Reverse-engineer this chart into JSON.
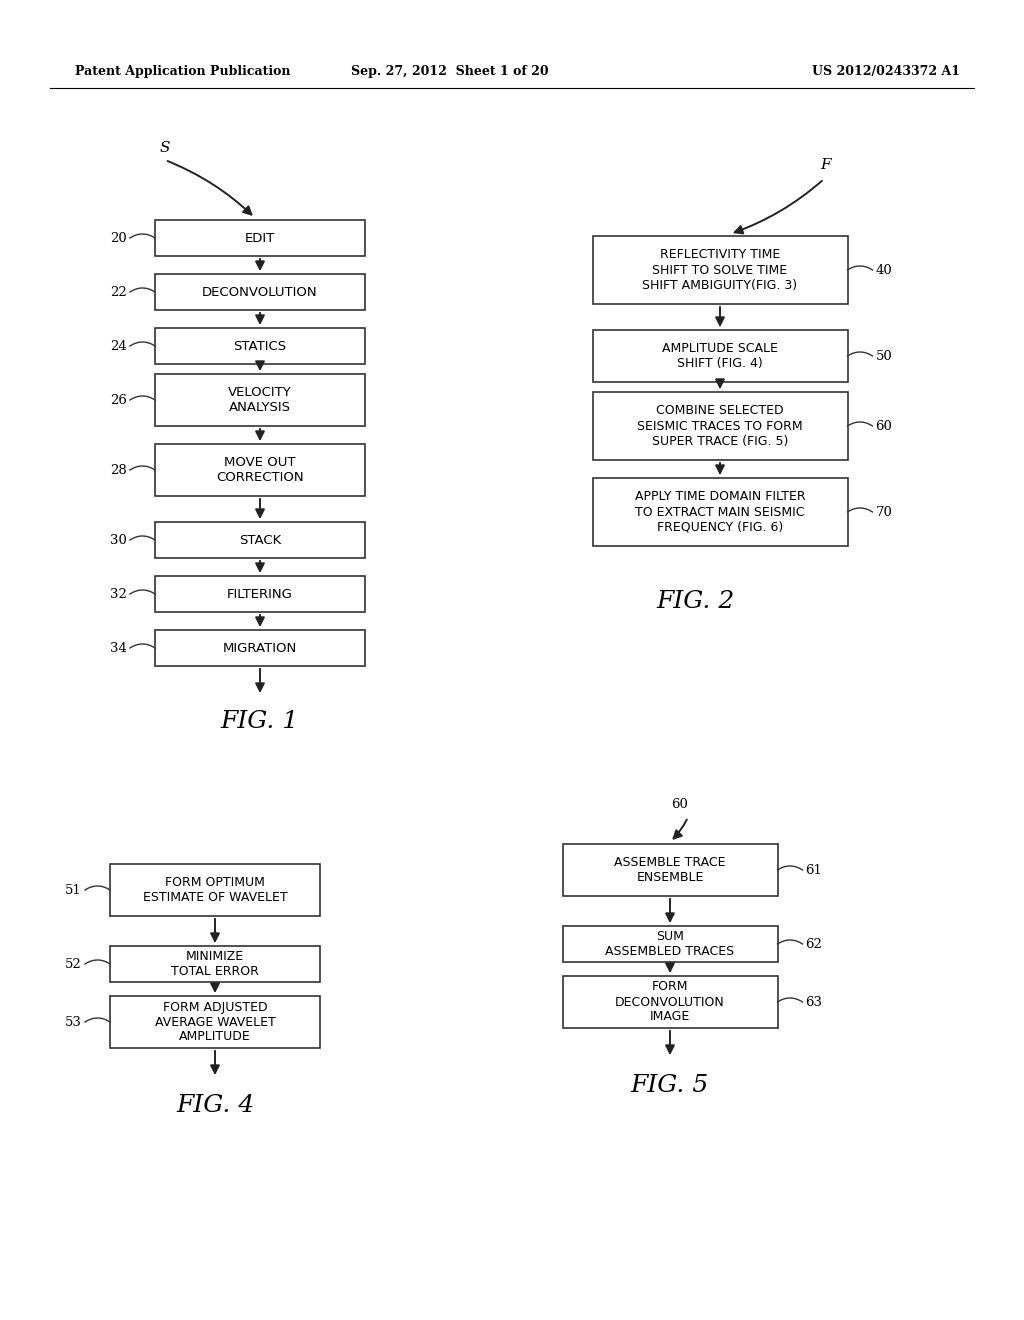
{
  "bg_color": "#ffffff",
  "header_left": "Patent Application Publication",
  "header_mid": "Sep. 27, 2012  Sheet 1 of 20",
  "header_right": "US 2012/0243372 A1",
  "fig1_title": "FIG. 1",
  "fig2_title": "FIG. 2",
  "fig4_title": "FIG. 4",
  "fig5_title": "FIG. 5",
  "fig1_boxes": [
    {
      "label": "20",
      "text": "EDIT"
    },
    {
      "label": "22",
      "text": "DECONVOLUTION"
    },
    {
      "label": "24",
      "text": "STATICS"
    },
    {
      "label": "26",
      "text": "VELOCITY\nANALYSIS"
    },
    {
      "label": "28",
      "text": "MOVE OUT\nCORRECTION"
    },
    {
      "label": "30",
      "text": "STACK"
    },
    {
      "label": "32",
      "text": "FILTERING"
    },
    {
      "label": "34",
      "text": "MIGRATION"
    }
  ],
  "fig2_boxes": [
    {
      "label": "40",
      "text": "REFLECTIVITY TIME\nSHIFT TO SOLVE TIME\nSHIFT AMBIGUITY(FIG. 3)"
    },
    {
      "label": "50",
      "text": "AMPLITUDE SCALE\nSHIFT (FIG. 4)"
    },
    {
      "label": "60",
      "text": "COMBINE SELECTED\nSEISMIC TRACES TO FORM\nSUPER TRACE (FIG. 5)"
    },
    {
      "label": "70",
      "text": "APPLY TIME DOMAIN FILTER\nTO EXTRACT MAIN SEISMIC\nFREQUENCY (FIG. 6)"
    }
  ],
  "fig4_boxes": [
    {
      "label": "51",
      "text": "FORM OPTIMUM\nESTIMATE OF WAVELET"
    },
    {
      "label": "52",
      "text": "MINIMIZE\nTOTAL ERROR"
    },
    {
      "label": "53",
      "text": "FORM ADJUSTED\nAVERAGE WAVELET\nAMPLITUDE"
    }
  ],
  "fig5_boxes": [
    {
      "label": "61",
      "text": "ASSEMBLE TRACE\nENSEMBLE"
    },
    {
      "label": "62",
      "text": "SUM\nASSEMBLED TRACES"
    },
    {
      "label": "63",
      "text": "FORM\nDECONVOLUTION\nIMAGE"
    }
  ]
}
